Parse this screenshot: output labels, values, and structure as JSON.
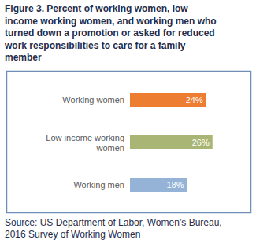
{
  "chart_data": {
    "type": "bar",
    "orientation": "horizontal",
    "title": "Figure 3. Percent of working women, low income working women, and working men who turned down a promotion or asked for reduced work responsibilities to care for a family member",
    "categories": [
      "Working women",
      "Low income working women",
      "Working men"
    ],
    "values": [
      24,
      26,
      18
    ],
    "value_labels": [
      "24%",
      "26%",
      "18%"
    ],
    "colors": [
      "#ed7d31",
      "#a9b574",
      "#95b3d7"
    ],
    "xlim": [
      0,
      35
    ],
    "data_labels": true,
    "tick_labels": "y",
    "grid": false,
    "source": "Source: US Department of Labor, Women’s Bureau, 2016 Survey of Working Women"
  }
}
